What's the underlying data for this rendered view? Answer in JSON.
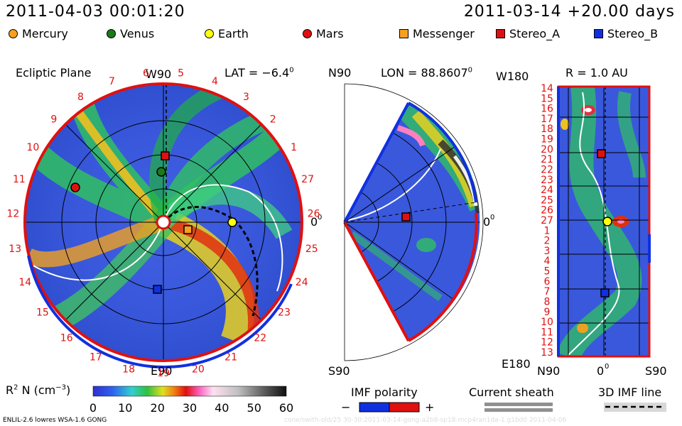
{
  "header": {
    "left_time": "2011-04-03 00:01:20",
    "right_time": "2011-03-14 +20.00 days"
  },
  "legend": {
    "items": [
      {
        "label": "Mercury",
        "shape": "circle",
        "color": "#f7a020"
      },
      {
        "label": "Venus",
        "shape": "circle",
        "color": "#1a7a1a"
      },
      {
        "label": "Earth",
        "shape": "circle",
        "color": "#ffff10"
      },
      {
        "label": "Mars",
        "shape": "circle",
        "color": "#e01010"
      },
      {
        "label": "Messenger",
        "shape": "square",
        "color": "#f7a020"
      },
      {
        "label": "Stereo_A",
        "shape": "square",
        "color": "#e01010"
      },
      {
        "label": "Stereo_B",
        "shape": "square",
        "color": "#1030e0"
      }
    ]
  },
  "panels": {
    "ecliptic": {
      "title": "Ecliptic Plane",
      "top_label": "W90",
      "bottom_label": "E90",
      "right_label": "0",
      "lat_label": "LAT = −6.4",
      "deg": "0",
      "carrington_labels": [
        "13",
        "12",
        "11",
        "10",
        "9",
        "8",
        "7",
        "6",
        "5",
        "4",
        "3",
        "2",
        "1",
        "27",
        "26",
        "25",
        "24",
        "23",
        "22",
        "21",
        "20",
        "19",
        "18",
        "17",
        "16",
        "15",
        "14"
      ]
    },
    "meridional": {
      "top_label": "N90",
      "bottom_label": "S90",
      "right_label": "0",
      "lon_label": "LON = 88.8607",
      "deg": "0"
    },
    "radial": {
      "top_left": "W180",
      "bottom_left": "E180",
      "r_label": "R = 1.0 AU",
      "bottom_labels": [
        "N90",
        "0",
        "S90"
      ],
      "deg": "0",
      "y_labels": [
        "14",
        "15",
        "16",
        "17",
        "18",
        "19",
        "20",
        "21",
        "22",
        "23",
        "24",
        "25",
        "26",
        "27",
        "1",
        "2",
        "3",
        "4",
        "5",
        "6",
        "7",
        "8",
        "9",
        "10",
        "11",
        "12",
        "13"
      ]
    }
  },
  "colorbar": {
    "label_main": "R",
    "label_sup1": "2",
    "label_mid": " N (cm",
    "label_sup2": "−3",
    "label_end": ")",
    "ticks": [
      "0",
      "10",
      "20",
      "30",
      "40",
      "50",
      "60"
    ],
    "range": [
      0,
      60
    ]
  },
  "keys": {
    "imf_polarity": "IMF polarity",
    "minus": "−",
    "plus": "+",
    "current_sheath": "Current sheath",
    "imf_line": "3D IMF line"
  },
  "footer": {
    "left": "ENLIL-2.6 lowres WSA-1.6 GONG",
    "right": "cone/swith-old/25 30-30:2011-03-14-gong-a2b8-sp18-mcp4ran1da-1.g1bd0   2011-04-06"
  },
  "chart_data": {
    "type": "heatmap",
    "quantity": "R2 N (cm-3)",
    "scale": [
      0,
      60
    ],
    "markers": {
      "ecliptic": [
        {
          "name": "Mercury",
          "shape": "circle"
        },
        {
          "name": "Venus",
          "shape": "circle"
        },
        {
          "name": "Earth",
          "shape": "circle"
        },
        {
          "name": "Mars",
          "shape": "circle"
        },
        {
          "name": "Messenger",
          "shape": "square"
        },
        {
          "name": "Stereo_A",
          "shape": "square"
        },
        {
          "name": "Stereo_B",
          "shape": "square"
        }
      ]
    }
  }
}
